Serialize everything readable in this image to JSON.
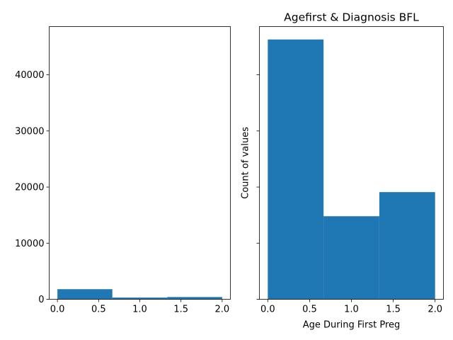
{
  "chart_data": [
    {
      "type": "bar",
      "title": "",
      "xlabel": "",
      "ylabel": "",
      "color": "#1f77b4",
      "bins": [
        {
          "x0": 0.0,
          "x1": 0.6667,
          "value": 1800
        },
        {
          "x0": 0.6667,
          "x1": 1.3333,
          "value": 300
        },
        {
          "x0": 1.3333,
          "x1": 2.0,
          "value": 400
        }
      ],
      "xlim": [
        -0.1,
        2.1
      ],
      "ylim": [
        0,
        48600
      ],
      "xticks": [
        0.0,
        0.5,
        1.0,
        1.5,
        2.0
      ],
      "xtick_labels": [
        "0.0",
        "0.5",
        "1.0",
        "1.5",
        "2.0"
      ],
      "yticks": [
        0,
        10000,
        20000,
        30000,
        40000
      ],
      "ytick_labels": [
        "0",
        "10000",
        "20000",
        "30000",
        "40000"
      ]
    },
    {
      "type": "bar",
      "title": "Agefirst & Diagnosis BFL",
      "xlabel": "Age During First Preg",
      "ylabel": "Count of values",
      "color": "#1f77b4",
      "bins": [
        {
          "x0": 0.0,
          "x1": 0.6667,
          "value": 46300
        },
        {
          "x0": 0.6667,
          "x1": 1.3333,
          "value": 14800
        },
        {
          "x0": 1.3333,
          "x1": 2.0,
          "value": 19100
        }
      ],
      "xlim": [
        -0.1,
        2.1
      ],
      "ylim": [
        0,
        48600
      ],
      "xticks": [
        0.0,
        0.5,
        1.0,
        1.5,
        2.0
      ],
      "xtick_labels": [
        "0.0",
        "0.5",
        "1.0",
        "1.5",
        "2.0"
      ],
      "yticks": [
        0,
        10000,
        20000,
        30000,
        40000
      ],
      "ytick_labels": [
        "",
        "",
        "",
        "",
        ""
      ]
    }
  ]
}
